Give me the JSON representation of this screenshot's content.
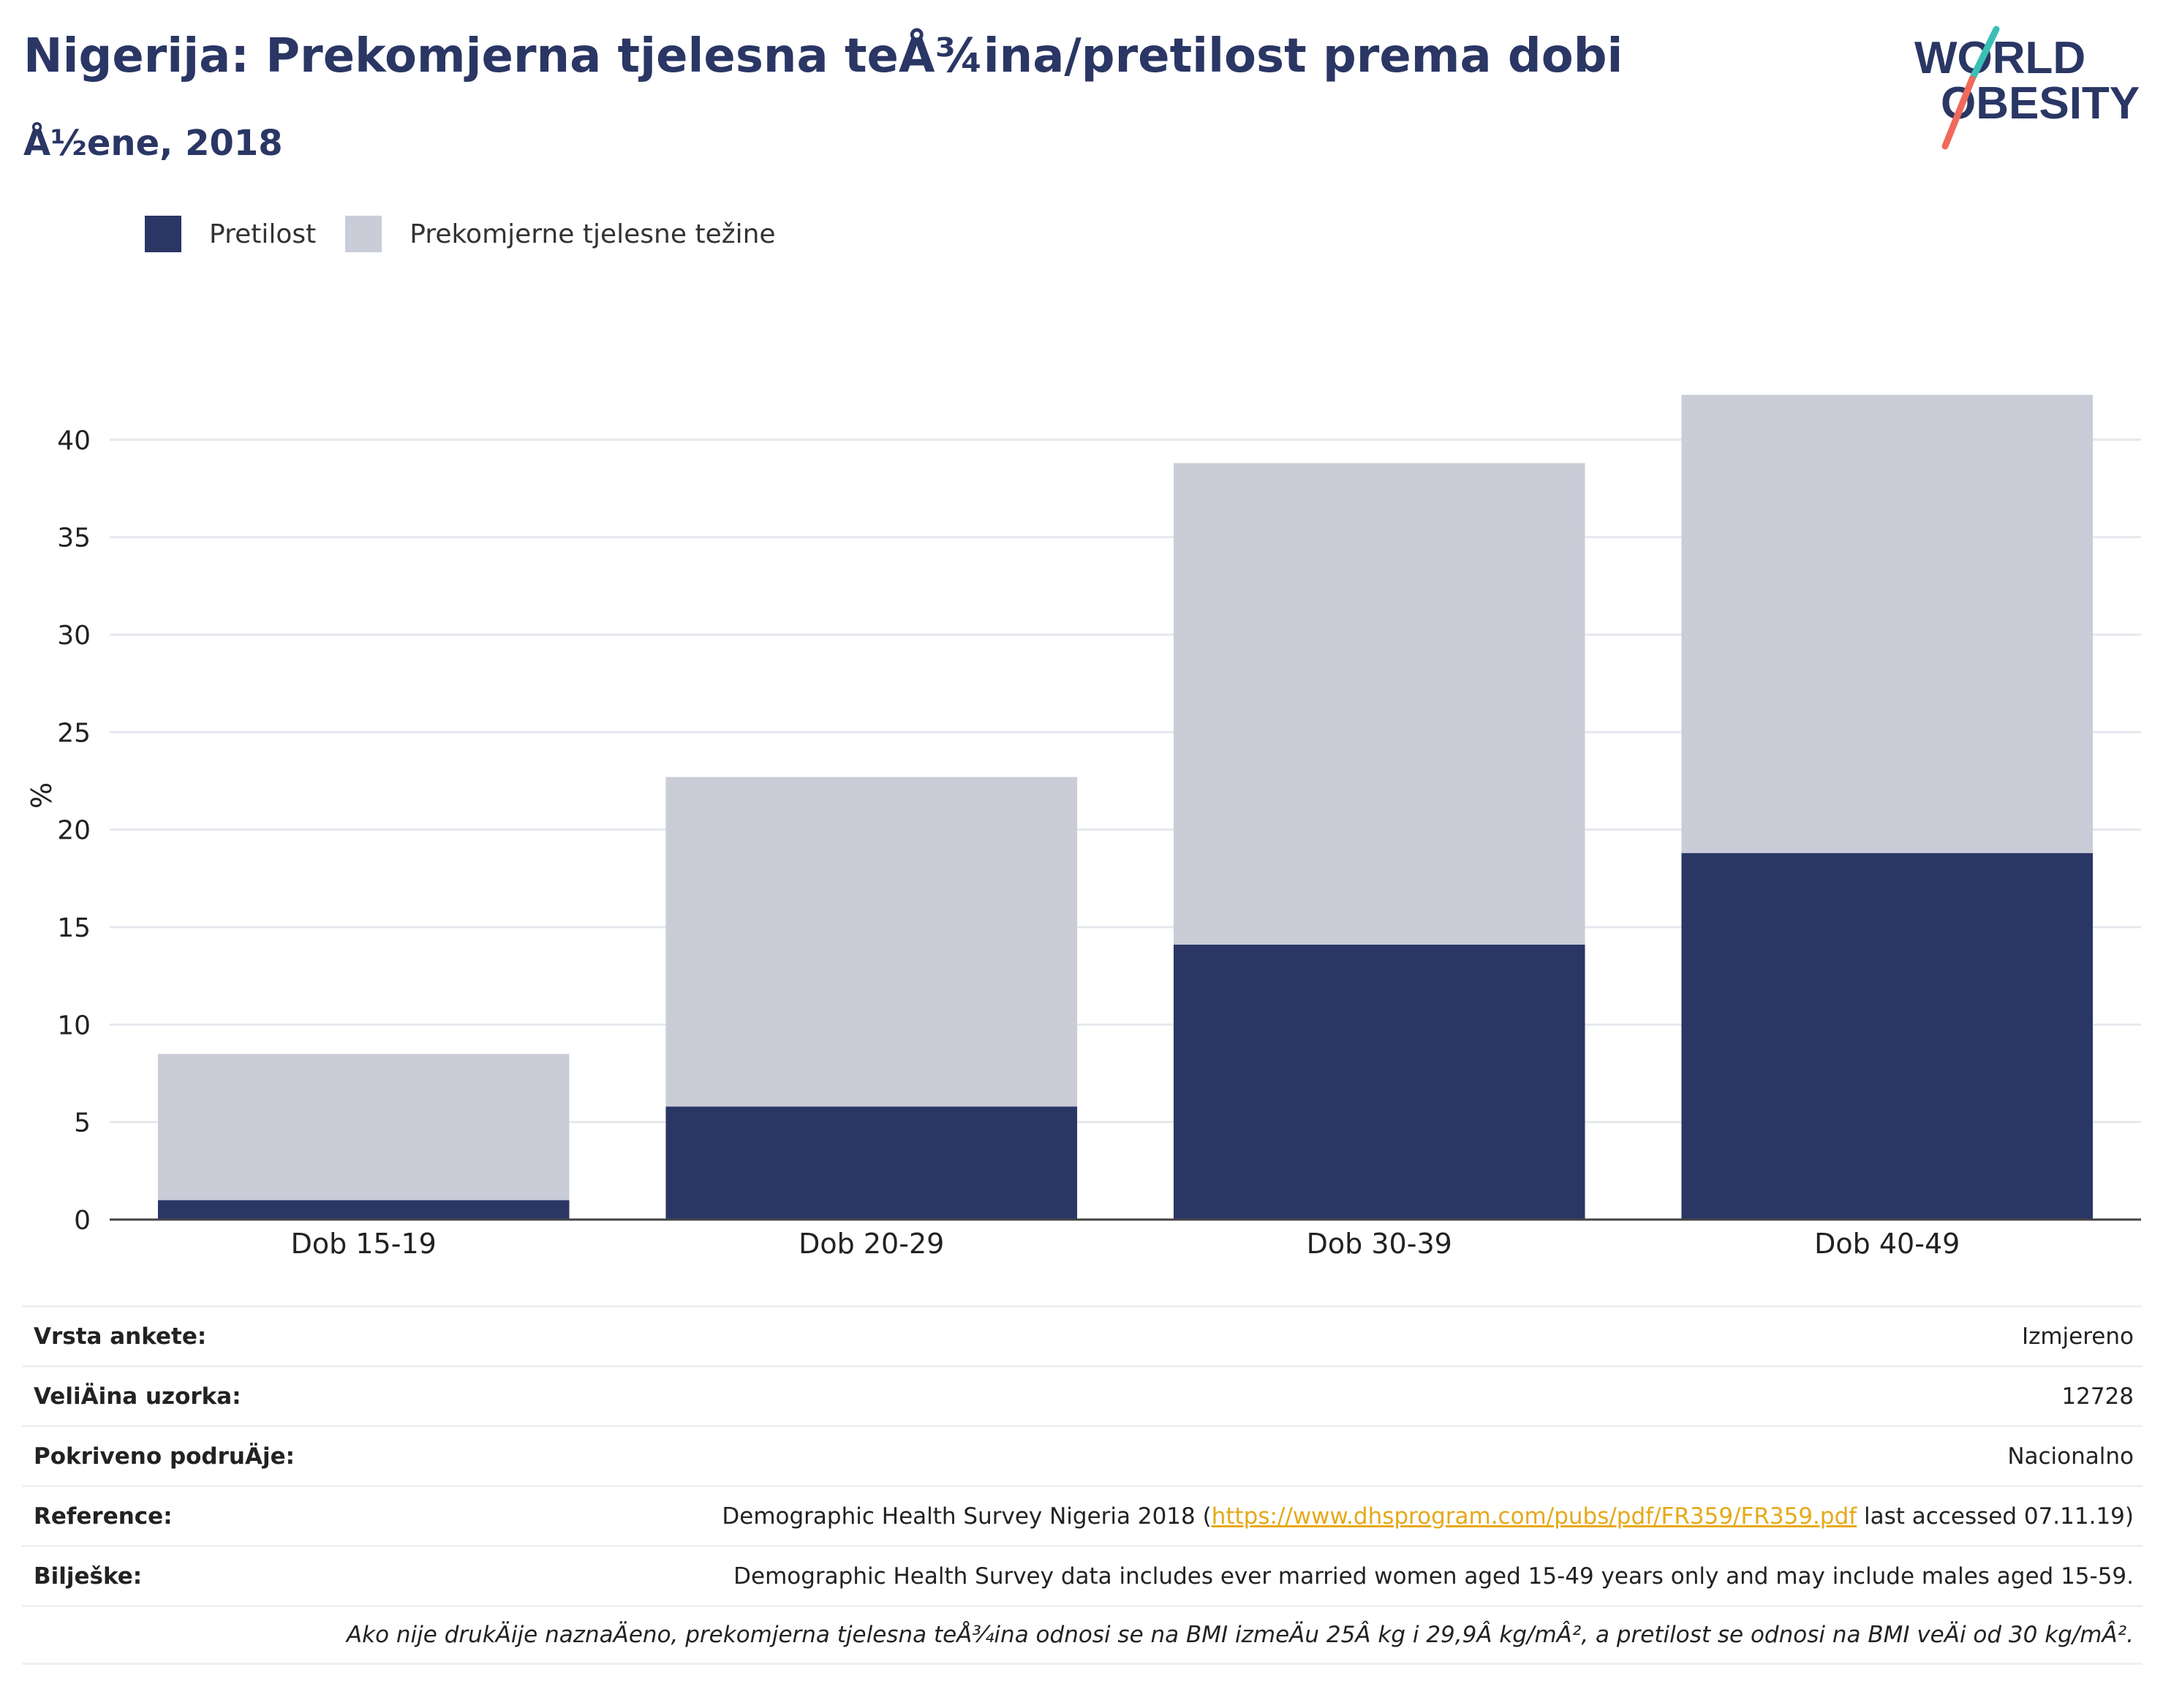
{
  "title": "Nigerija: Prekomjerna tjelesna teÅ¾ina/pretilost prema dobi",
  "subtitle": "Å½ene, 2018",
  "logo": {
    "line1": "WORLD",
    "line2": "OBESITY"
  },
  "legend": [
    {
      "label": "Pretilost",
      "color": "#2a3664"
    },
    {
      "label": "Prekomjerne tjelesne težine",
      "color": "#cacdd8"
    }
  ],
  "chart_data": {
    "type": "bar",
    "stacked": true,
    "categories": [
      "Dob 15-19",
      "Dob 20-29",
      "Dob 30-39",
      "Dob 40-49"
    ],
    "series": [
      {
        "name": "Pretilost",
        "values": [
          1.0,
          5.8,
          14.1,
          18.8
        ],
        "color": "#2a3664"
      },
      {
        "name": "Prekomjerne tjelesne težine",
        "values": [
          7.5,
          16.9,
          24.7,
          23.5
        ],
        "color": "#cacdd8"
      }
    ],
    "ylabel": "%",
    "ylim": [
      0,
      42.3
    ],
    "yticks": [
      0,
      5,
      10,
      15,
      20,
      25,
      30,
      35,
      40
    ],
    "grid": true,
    "legend_position": "top-left"
  },
  "info": {
    "survey_type": {
      "label": "Vrsta ankete:",
      "value": "Izmjereno"
    },
    "sample_size": {
      "label": "VeliÄina uzorka:",
      "value": "12728"
    },
    "area_covered": {
      "label": "Pokriveno podruÄje:",
      "value": "Nacionalno"
    },
    "reference": {
      "label": "Reference:",
      "text_before": "Demographic Health Survey Nigeria 2018 (",
      "link": "https://www.dhsprogram.com/pubs/pdf/FR359/FR359.pdf",
      "text_after": " last accessed 07.11.19)"
    },
    "notes": {
      "label": "Bilješke:",
      "value": "Demographic Health Survey data includes ever married women aged 15-49 years only and may include males aged 15-59."
    },
    "footnote": "Ako nije drukÄije naznaÄeno, prekomjerna tjelesna teÅ¾ina odnosi se na BMI izmeÄu 25Â kg i 29,9Â kg/mÂ², a pretilost se odnosi na BMI veÄi od 30 kg/mÂ²."
  }
}
